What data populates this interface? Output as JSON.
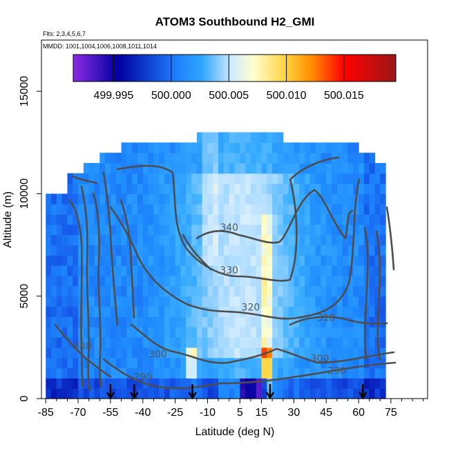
{
  "chart_data": {
    "type": "heatmap",
    "title": "ATOM3 Southbound H2_GMI",
    "subtitle_flights": "Flts: 2,3,4,5,6,7",
    "subtitle_dates": "MMDD: 1001,1004,1006,1008,1011,1014",
    "xlabel": "Latitude (deg N)",
    "ylabel": "Altitude (m)",
    "xlim": [
      -87,
      92
    ],
    "ylim": [
      0,
      17500
    ],
    "x_ticks": [
      -85,
      -70,
      -55,
      -40,
      -25,
      -10,
      5,
      15,
      30,
      45,
      60,
      75
    ],
    "y_ticks": [
      0,
      5000,
      10000,
      15000
    ],
    "colorbar": {
      "range": [
        499.9915,
        500.0195
      ],
      "tick_values": [
        499.995,
        500.0,
        500.005,
        500.01,
        500.015
      ],
      "tick_labels": [
        "499.995",
        "500.000",
        "500.005",
        "500.010",
        "500.015"
      ],
      "colors": [
        "#7a1fe6",
        "#0000a8",
        "#1f7fff",
        "#2ea6ff",
        "#bfe4ff",
        "#ffffcc",
        "#ffd23c",
        "#ff8c00",
        "#ff0000",
        "#a01010"
      ]
    },
    "profile_markers_lat": [
      -55,
      -44,
      -17,
      19,
      62
    ],
    "contour_levels": [
      280,
      290,
      300,
      310,
      320,
      330,
      340
    ],
    "contour_labels": [
      {
        "text": "340",
        "lat": 0,
        "alt": 8200
      },
      {
        "text": "330",
        "lat": 0,
        "alt": 6100
      },
      {
        "text": "320",
        "lat": 10,
        "alt": 4300
      },
      {
        "text": "310",
        "lat": 45,
        "alt": 3800
      },
      {
        "text": "300",
        "lat": -33,
        "alt": 2000
      },
      {
        "text": "300",
        "lat": 42,
        "alt": 1800
      },
      {
        "text": "290",
        "lat": -40,
        "alt": 900
      },
      {
        "text": "290",
        "lat": 50,
        "alt": 1200
      },
      {
        "text": "280",
        "lat": -68,
        "alt": 2400
      }
    ]
  }
}
